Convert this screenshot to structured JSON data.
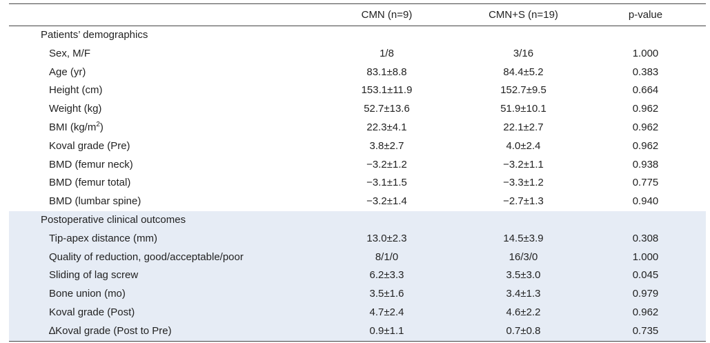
{
  "table": {
    "headers": [
      "",
      "CMN (n=9)",
      "CMN+S (n=19)",
      "p-value"
    ],
    "sections": [
      {
        "title": "Patients’ demographics",
        "rows": [
          {
            "label": "Sex, M/F",
            "cmn": "1/8",
            "cmns": "3/16",
            "p": "1.000"
          },
          {
            "label": "Age (yr)",
            "cmn": "83.1±8.8",
            "cmns": "84.4±5.2",
            "p": "0.383"
          },
          {
            "label": "Height (cm)",
            "cmn": "153.1±11.9",
            "cmns": "152.7±9.5",
            "p": "0.664"
          },
          {
            "label": "Weight (kg)",
            "cmn": "52.7±13.6",
            "cmns": "51.9±10.1",
            "p": "0.962"
          },
          {
            "label": "BMI (kg/m",
            "label_sup": "2",
            "label_after": ")",
            "cmn": "22.3±4.1",
            "cmns": "22.1±2.7",
            "p": "0.962"
          },
          {
            "label": "Koval grade (Pre)",
            "cmn": "3.8±2.7",
            "cmns": "4.0±2.4",
            "p": "0.962"
          },
          {
            "label": "BMD (femur neck)",
            "cmn": "−3.2±1.2",
            "cmns": "−3.2±1.1",
            "p": "0.938"
          },
          {
            "label": "BMD (femur total)",
            "cmn": "−3.1±1.5",
            "cmns": "−3.3±1.2",
            "p": "0.775"
          },
          {
            "label": "BMD (lumbar spine)",
            "cmn": "−3.2±1.4",
            "cmns": "−2.7±1.3",
            "p": "0.940"
          }
        ]
      },
      {
        "title": "Postoperative clinical outcomes",
        "rows": [
          {
            "label": "Tip-apex distance (mm)",
            "cmn": "13.0±2.3",
            "cmns": "14.5±3.9",
            "p": "0.308"
          },
          {
            "label": "Quality of reduction, good/acceptable/poor",
            "cmn": "8/1/0",
            "cmns": "16/3/0",
            "p": "1.000"
          },
          {
            "label": "Sliding of lag screw",
            "cmn": "6.2±3.3",
            "cmns": "3.5±3.0",
            "p": "0.045"
          },
          {
            "label": "Bone union (mo)",
            "cmn": "3.5±1.6",
            "cmns": "3.4±1.3",
            "p": "0.979"
          },
          {
            "label": "Koval grade (Post)",
            "cmn": "4.7±2.4",
            "cmns": "4.6±2.2",
            "p": "0.962"
          },
          {
            "label": "∆Koval grade (Post to Pre)",
            "cmn": "0.9±1.1",
            "cmns": "0.7±0.8",
            "p": "0.735"
          }
        ]
      }
    ]
  }
}
